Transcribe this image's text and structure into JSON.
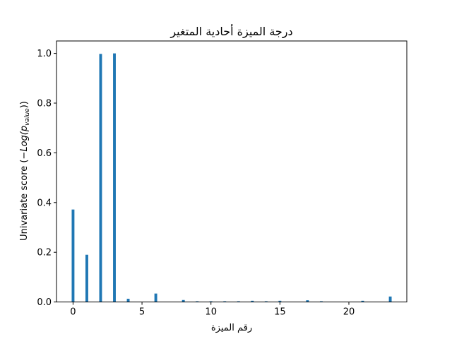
{
  "chart_data": {
    "type": "bar",
    "title": "درجة الميزة أحادية المتغير",
    "xlabel": "رقم الميزة",
    "ylabel_prefix": "Univariate score (",
    "ylabel_math": "−Log(p",
    "ylabel_sub": "value",
    "ylabel_suffix": "))",
    "xlim": [
      -1.2,
      24.2
    ],
    "ylim": [
      0,
      1.05
    ],
    "xticks": [
      0,
      5,
      10,
      15,
      20
    ],
    "yticks": [
      0.0,
      0.2,
      0.4,
      0.6,
      0.8,
      1.0
    ],
    "xtick_labels": [
      "0",
      "5",
      "10",
      "15",
      "20"
    ],
    "ytick_labels": [
      "0.0",
      "0.2",
      "0.4",
      "0.6",
      "0.8",
      "1.0"
    ],
    "bar_color": "#1f77b4",
    "x": [
      0,
      1,
      2,
      3,
      4,
      5,
      6,
      7,
      8,
      9,
      10,
      11,
      12,
      13,
      14,
      15,
      16,
      17,
      18,
      19,
      20,
      21,
      22,
      23
    ],
    "values": [
      0.372,
      0.19,
      0.998,
      1.0,
      0.013,
      0.0,
      0.034,
      0.0,
      0.008,
      0.003,
      0.003,
      0.003,
      0.003,
      0.005,
      0.003,
      0.005,
      0.0,
      0.007,
      0.003,
      0.0,
      0.0,
      0.005,
      0.0,
      0.022
    ],
    "grid": false,
    "legend": "none"
  }
}
